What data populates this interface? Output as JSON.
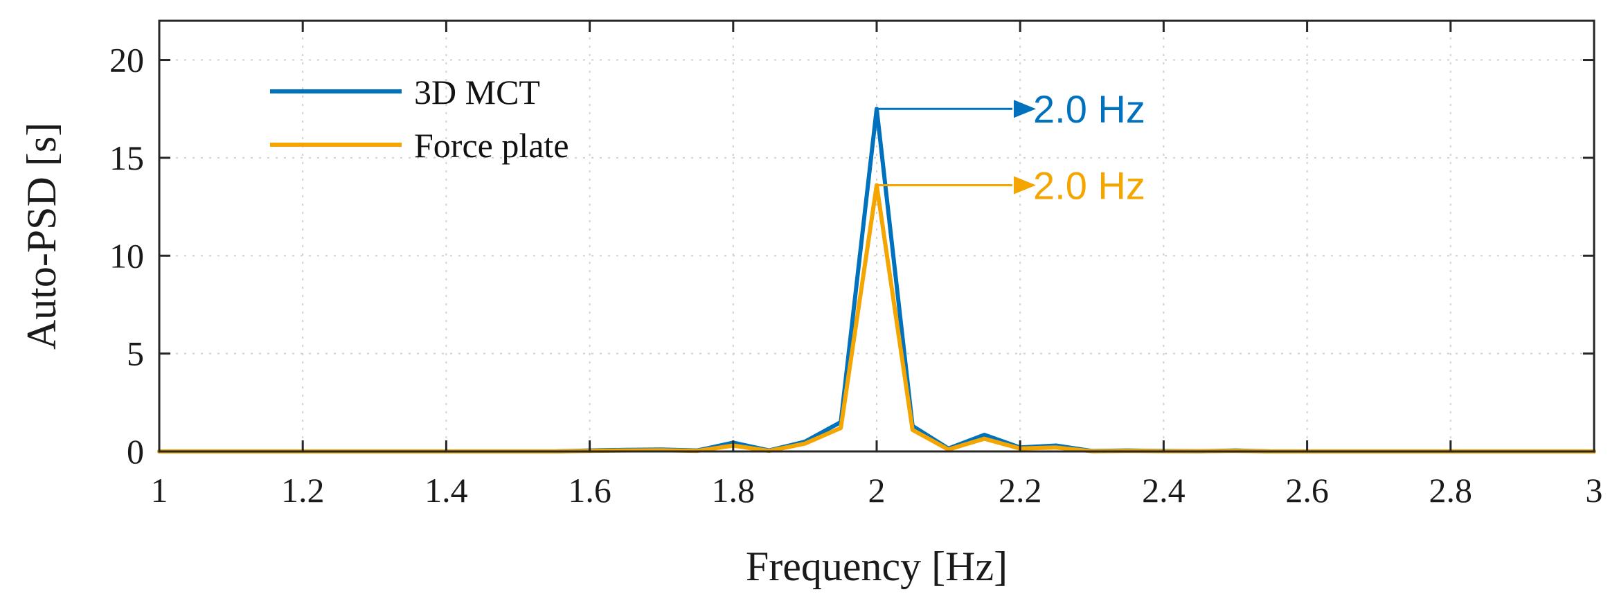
{
  "chart_data": {
    "type": "line",
    "xlabel": "Frequency [Hz]",
    "ylabel": "Auto-PSD [s]",
    "xlim": [
      1,
      3
    ],
    "ylim": [
      0,
      22
    ],
    "xticks": [
      1,
      1.2,
      1.4,
      1.6,
      1.8,
      2,
      2.2,
      2.4,
      2.6,
      2.8,
      3
    ],
    "xtick_labels": [
      "1",
      "1.2",
      "1.4",
      "1.6",
      "1.8",
      "2",
      "2.2",
      "2.4",
      "2.6",
      "2.8",
      "3"
    ],
    "yticks": [
      0,
      5,
      10,
      15,
      20
    ],
    "ytick_labels": [
      "0",
      "5",
      "10",
      "15",
      "20"
    ],
    "grid": true,
    "legend_position": "top-left",
    "series": [
      {
        "name": "3D MCT",
        "color": "#0072BD",
        "x": [
          1.0,
          1.05,
          1.1,
          1.15,
          1.2,
          1.25,
          1.3,
          1.35,
          1.4,
          1.45,
          1.5,
          1.55,
          1.6,
          1.65,
          1.7,
          1.75,
          1.8,
          1.85,
          1.9,
          1.95,
          2.0,
          2.05,
          2.1,
          2.15,
          2.2,
          2.25,
          2.3,
          2.35,
          2.4,
          2.45,
          2.5,
          2.55,
          2.6,
          2.65,
          2.7,
          2.75,
          2.8,
          2.85,
          2.9,
          2.95,
          3.0
        ],
        "values": [
          0,
          0,
          0,
          0,
          0,
          0,
          0,
          0,
          0,
          0,
          0,
          0,
          0.05,
          0.08,
          0.1,
          0.05,
          0.45,
          0.05,
          0.5,
          1.5,
          17.5,
          1.3,
          0.15,
          0.85,
          0.2,
          0.3,
          0.02,
          0.05,
          0.02,
          0.01,
          0.05,
          0,
          0,
          0,
          0,
          0,
          0,
          0,
          0,
          0,
          0
        ]
      },
      {
        "name": "Force plate",
        "color": "#F5A500",
        "x": [
          1.0,
          1.05,
          1.1,
          1.15,
          1.2,
          1.25,
          1.3,
          1.35,
          1.4,
          1.45,
          1.5,
          1.55,
          1.6,
          1.65,
          1.7,
          1.75,
          1.8,
          1.85,
          1.9,
          1.95,
          2.0,
          2.05,
          2.1,
          2.15,
          2.2,
          2.25,
          2.3,
          2.35,
          2.4,
          2.45,
          2.5,
          2.55,
          2.6,
          2.65,
          2.7,
          2.75,
          2.8,
          2.85,
          2.9,
          2.95,
          3.0
        ],
        "values": [
          0,
          0,
          0,
          0,
          0,
          0,
          0,
          0,
          0,
          0,
          0,
          0,
          0.03,
          0.05,
          0.06,
          0.03,
          0.3,
          0.03,
          0.4,
          1.2,
          13.6,
          1.1,
          0.1,
          0.65,
          0.15,
          0.2,
          0.01,
          0.03,
          0.01,
          0.01,
          0.03,
          0,
          0,
          0,
          0,
          0,
          0,
          0,
          0,
          0,
          0
        ]
      }
    ],
    "annotations": [
      {
        "text": "2.0 Hz",
        "x": 2.0,
        "y": 17.5,
        "color": "#0072BD",
        "series": "3D MCT"
      },
      {
        "text": "2.0 Hz",
        "x": 2.0,
        "y": 13.6,
        "color": "#F5A500",
        "series": "Force plate"
      }
    ]
  }
}
